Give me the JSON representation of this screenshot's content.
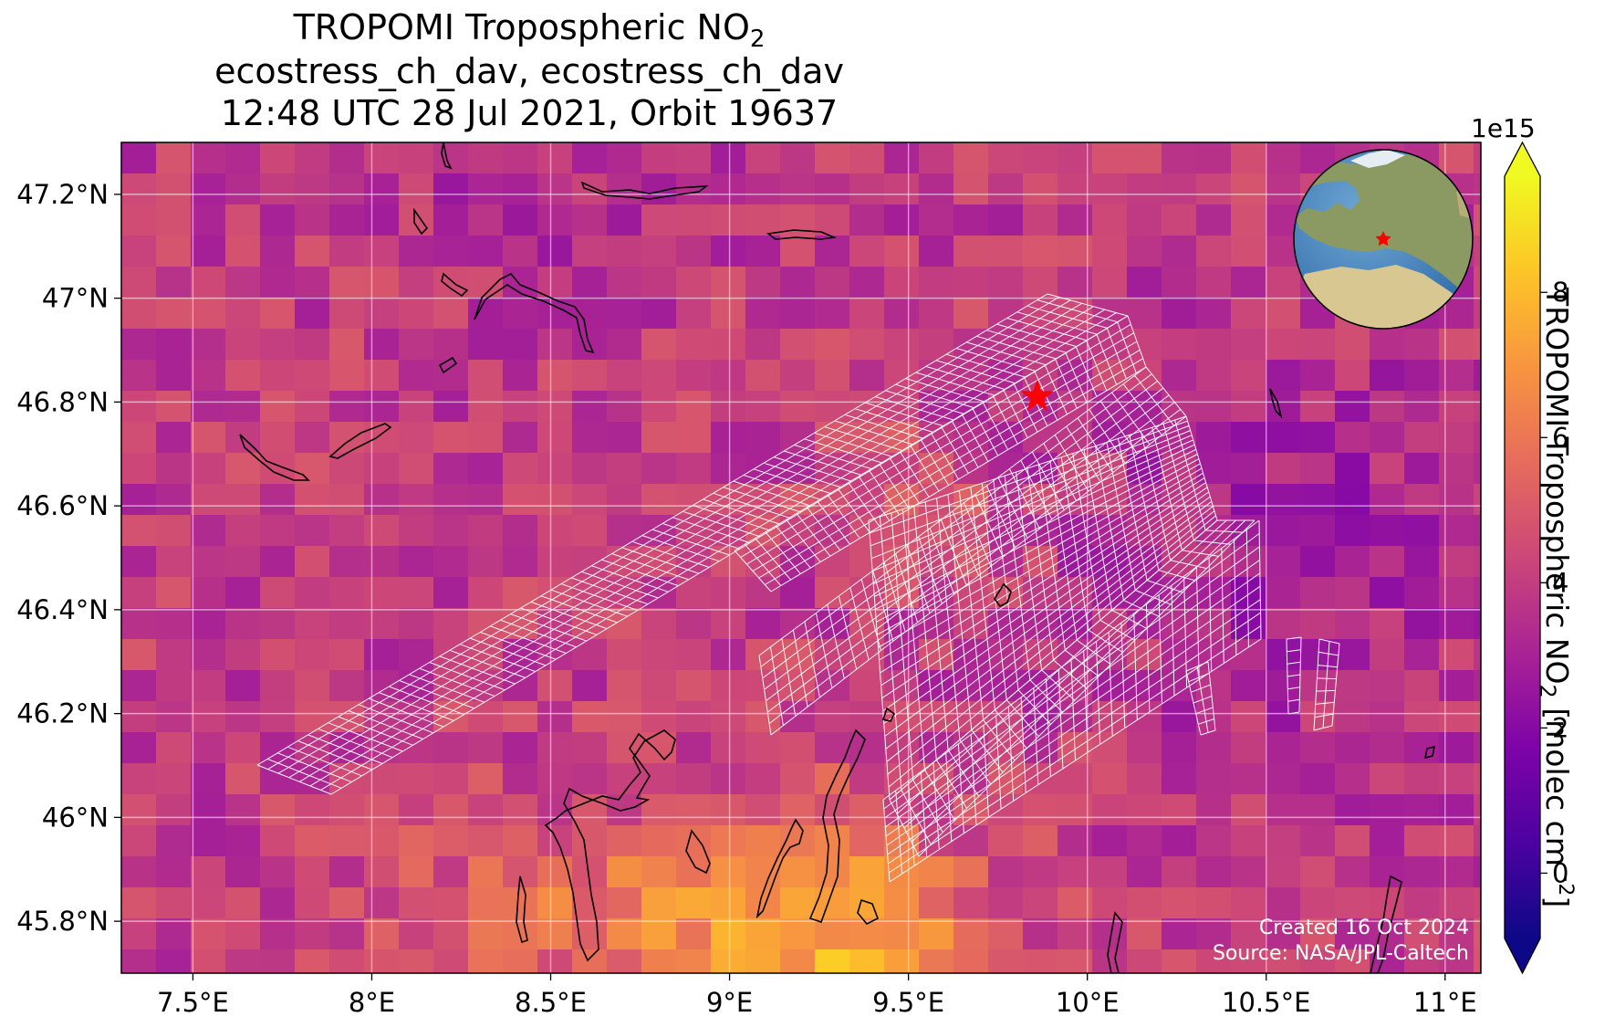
{
  "title": {
    "line1_prefix": "TROPOMI Tropospheric NO",
    "line1_sub": "2",
    "line2": "ecostress_ch_dav, ecostress_ch_dav",
    "line3": "12:48 UTC 28 Jul 2021, Orbit 19637"
  },
  "map": {
    "lon_range": [
      7.3,
      11.1
    ],
    "lat_range": [
      45.7,
      47.3
    ],
    "lon_ticks": [
      7.5,
      8.0,
      8.5,
      9.0,
      9.5,
      10.0,
      10.5,
      11.0
    ],
    "lon_tick_labels": [
      "7.5°E",
      "8°E",
      "8.5°E",
      "9°E",
      "9.5°E",
      "10°E",
      "10.5°E",
      "11°E"
    ],
    "lat_ticks": [
      45.8,
      46.0,
      46.2,
      46.4,
      46.6,
      46.8,
      47.0,
      47.2
    ],
    "lat_tick_labels": [
      "45.8°N",
      "46°N",
      "46.2°N",
      "46.4°N",
      "46.6°N",
      "46.8°N",
      "47°N",
      "47.2°N"
    ],
    "gridlines": true,
    "site_marker": {
      "lon": 9.86,
      "lat": 46.81,
      "color": "#ff0000"
    },
    "grid_overlay_color": "#ffffff",
    "coastline_color": "#000000"
  },
  "colorbar": {
    "colormap": "plasma",
    "vmin": -0.9,
    "vmax": 9.6,
    "extend": "both",
    "ticks": [
      0,
      2,
      4,
      6,
      8
    ],
    "tick_labels": [
      "0",
      "2",
      "4",
      "6",
      "8"
    ],
    "exponent_label": "1e15",
    "label_prefix": "TROPOMI Tropospheric NO",
    "label_sub": "2",
    "label_mid": " [molec cm",
    "label_sup": "−2",
    "label_suffix": "]"
  },
  "inset_globe": {
    "highlight": "Europe",
    "marker_color": "#ff0000"
  },
  "credits": {
    "created": "Created 16 Oct 2024",
    "source": "Source: NASA/JPL-Caltech"
  }
}
